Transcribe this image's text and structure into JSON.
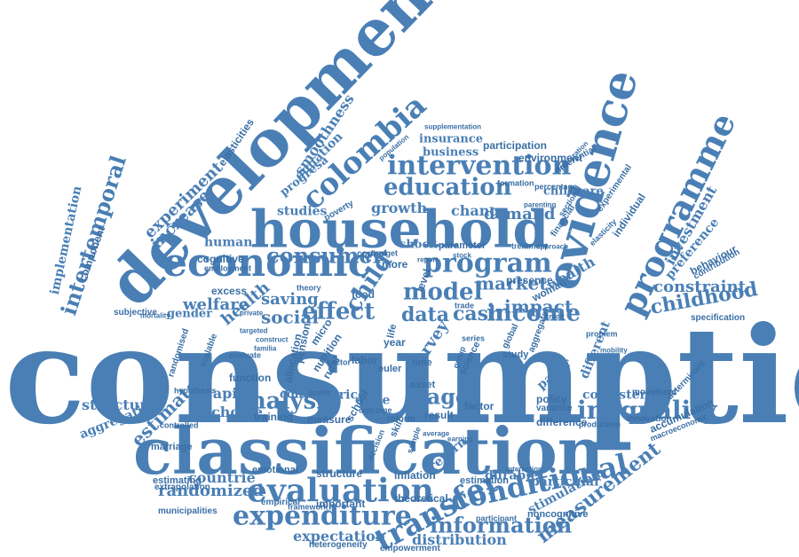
{
  "colors": {
    "word": "#4a7fb5",
    "word_dark": "#3a6fa5",
    "background": "#ffffff"
  },
  "words": [
    "consumption",
    "classification",
    "development",
    "household",
    "evidence",
    "economic",
    "programme",
    "evaluation",
    "expenditure",
    "conditional",
    "transfer",
    "intervention",
    "education",
    "colombia",
    "program",
    "income",
    "inequality",
    "information",
    "measurement",
    "analysis",
    "consumer",
    "intertemporal",
    "effect",
    "model",
    "market",
    "impact",
    "data",
    "cash",
    "wage",
    "estimate",
    "childhood",
    "constraint",
    "health",
    "welfare",
    "social",
    "saving",
    "experiment",
    "increase",
    "investment",
    "preference",
    "demand",
    "growth",
    "change",
    "studies",
    "insurance",
    "business",
    "participation",
    "environment",
    "childcare",
    "structural",
    "aggregation",
    "capital",
    "choice",
    "function",
    "cohort",
    "training",
    "measure",
    "randomized",
    "countrie",
    "distribution",
    "expectation",
    "heterogeneity",
    "empowerment",
    "noncognitive",
    "particular",
    "stimulation",
    "durable",
    "inflation",
    "structure",
    "important",
    "empirical",
    "municipalities",
    "extrapolation",
    "estimating",
    "marriage",
    "controlled",
    "hypothesis",
    "randomised",
    "subjective",
    "component",
    "implementation",
    "elasticities",
    "smoothness",
    "equation",
    "progresa",
    "poverty",
    "human",
    "cognitive",
    "employment",
    "excess",
    "gender",
    "labor",
    "mortality",
    "shock",
    "more",
    "control",
    "budget",
    "food",
    "theory",
    "price",
    "cycle",
    "asset",
    "result",
    "factor",
    "reform",
    "policy",
    "paper",
    "consistent",
    "difference",
    "variance",
    "movement",
    "innovation",
    "production",
    "accumulation",
    "macroeconomic",
    "determinant",
    "different",
    "woman",
    "wealth",
    "presence",
    "financial",
    "individual",
    "behaviour",
    "contribution",
    "specification",
    "experimental",
    "elasticity",
    "sectional",
    "parenting",
    "formation",
    "percentage",
    "differential",
    "optimization",
    "supplementation",
    "population",
    "treatment",
    "approach",
    "parameter",
    "child",
    "survey",
    "time",
    "micro",
    "rural",
    "nutrition",
    "pension",
    "allocation",
    "year",
    "life",
    "skill",
    "science",
    "global",
    "study",
    "series",
    "return",
    "decision",
    "average",
    "earning",
    "emotional",
    "framework",
    "theoretical",
    "estimation",
    "participant",
    "interaction",
    "school",
    "scalable",
    "evaluate",
    "private",
    "targeted",
    "construct",
    "familia",
    "profile",
    "outcome",
    "sample",
    "group",
    "aggregate",
    "problem",
    "mobility",
    "credit",
    "level",
    "euler",
    "sector",
    "trade",
    "stock",
    "report",
    "market"
  ]
}
